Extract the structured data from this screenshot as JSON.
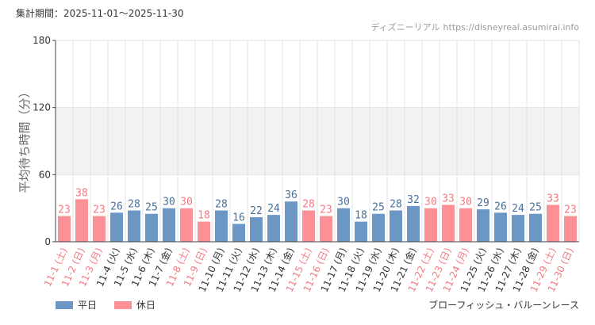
{
  "header": {
    "period_label": "集計期間：2025-11-01～2025-11-30",
    "source_name": "ディズニーリアル",
    "source_url": "https://disneyreal.asumirai.info"
  },
  "legend": {
    "weekday_label": "平日",
    "holiday_label": "休日"
  },
  "attraction_name": "ブローフィッシュ・バルーンレース",
  "colors": {
    "weekday": "#6c97c5",
    "holiday": "#fb9196",
    "weekday_text": "#4a6f98",
    "holiday_text": "#f07a80",
    "band": "#f2f2f2",
    "grid": "#e3e3e3",
    "axis": "#444444"
  },
  "chart_data": {
    "type": "bar",
    "ylabel": "平均待ち時間（分）",
    "xlabel": "",
    "ylim": [
      0,
      180
    ],
    "yticks": [
      0,
      60,
      120,
      180
    ],
    "shaded_band": [
      60,
      120
    ],
    "categories": [
      "11-1 (土)",
      "11-2 (日)",
      "11-3 (月)",
      "11-4 (火)",
      "11-5 (水)",
      "11-6 (木)",
      "11-7 (金)",
      "11-8 (土)",
      "11-9 (日)",
      "11-10 (月)",
      "11-11 (火)",
      "11-12 (水)",
      "11-13 (木)",
      "11-14 (金)",
      "11-15 (土)",
      "11-16 (日)",
      "11-17 (月)",
      "11-18 (火)",
      "11-19 (水)",
      "11-20 (木)",
      "11-21 (金)",
      "11-22 (土)",
      "11-23 (日)",
      "11-24 (月)",
      "11-25 (火)",
      "11-26 (水)",
      "11-27 (木)",
      "11-28 (金)",
      "11-29 (土)",
      "11-30 (日)"
    ],
    "values": [
      23,
      38,
      23,
      26,
      28,
      25,
      30,
      30,
      18,
      28,
      16,
      22,
      24,
      36,
      28,
      23,
      30,
      18,
      25,
      28,
      32,
      30,
      33,
      30,
      29,
      26,
      24,
      25,
      33,
      23
    ],
    "day_type": [
      "holiday",
      "holiday",
      "holiday",
      "weekday",
      "weekday",
      "weekday",
      "weekday",
      "holiday",
      "holiday",
      "weekday",
      "weekday",
      "weekday",
      "weekday",
      "weekday",
      "holiday",
      "holiday",
      "weekday",
      "weekday",
      "weekday",
      "weekday",
      "weekday",
      "holiday",
      "holiday",
      "holiday",
      "weekday",
      "weekday",
      "weekday",
      "weekday",
      "holiday",
      "holiday"
    ],
    "series": [
      {
        "name": "平日",
        "type": "weekday"
      },
      {
        "name": "休日",
        "type": "holiday"
      }
    ],
    "legend_position": "bottom-left",
    "grid": true
  }
}
